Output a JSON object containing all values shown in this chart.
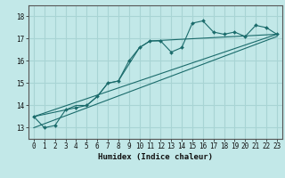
{
  "title": "",
  "xlabel": "Humidex (Indice chaleur)",
  "background_color": "#c2e8e8",
  "grid_color": "#a8d4d4",
  "line_color": "#1a6b6b",
  "xlim": [
    -0.5,
    23.5
  ],
  "ylim": [
    12.5,
    18.5
  ],
  "yticks": [
    13,
    14,
    15,
    16,
    17,
    18
  ],
  "xticks": [
    0,
    1,
    2,
    3,
    4,
    5,
    6,
    7,
    8,
    9,
    10,
    11,
    12,
    13,
    14,
    15,
    16,
    17,
    18,
    19,
    20,
    21,
    22,
    23
  ],
  "series1_x": [
    0,
    1,
    2,
    3,
    4,
    5,
    6,
    7,
    8,
    9,
    10,
    11,
    12,
    13,
    14,
    15,
    16,
    17,
    18,
    19,
    20,
    21,
    22,
    23
  ],
  "series1_y": [
    13.5,
    13.0,
    13.1,
    13.8,
    13.9,
    14.0,
    14.4,
    15.0,
    15.1,
    16.0,
    16.6,
    16.9,
    16.9,
    16.4,
    16.6,
    17.7,
    17.8,
    17.3,
    17.2,
    17.3,
    17.1,
    17.6,
    17.5,
    17.2
  ],
  "series2_x": [
    0,
    3,
    4,
    5,
    6,
    7,
    8,
    10,
    11,
    23
  ],
  "series2_y": [
    13.5,
    13.8,
    14.0,
    14.0,
    14.4,
    15.0,
    15.1,
    16.6,
    16.9,
    17.2
  ],
  "series3_x": [
    0,
    23
  ],
  "series3_y": [
    13.5,
    17.2
  ],
  "series4_x": [
    0,
    23
  ],
  "series4_y": [
    13.0,
    17.1
  ]
}
